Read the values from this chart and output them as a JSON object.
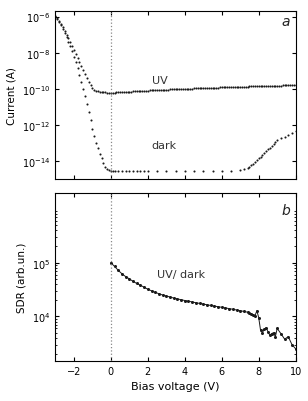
{
  "uv_x": [
    -3.0,
    -2.9,
    -2.8,
    -2.7,
    -2.6,
    -2.5,
    -2.4,
    -2.3,
    -2.2,
    -2.1,
    -2.0,
    -1.9,
    -1.8,
    -1.7,
    -1.6,
    -1.5,
    -1.4,
    -1.3,
    -1.2,
    -1.1,
    -1.0,
    -0.9,
    -0.8,
    -0.7,
    -0.6,
    -0.5,
    -0.4,
    -0.3,
    -0.2,
    -0.1,
    0.0,
    0.1,
    0.2,
    0.3,
    0.4,
    0.5,
    0.6,
    0.7,
    0.8,
    0.9,
    1.0,
    1.1,
    1.2,
    1.3,
    1.4,
    1.5,
    1.6,
    1.7,
    1.8,
    1.9,
    2.0,
    2.1,
    2.2,
    2.3,
    2.4,
    2.5,
    2.6,
    2.7,
    2.8,
    2.9,
    3.0,
    3.1,
    3.2,
    3.3,
    3.4,
    3.5,
    3.6,
    3.7,
    3.8,
    3.9,
    4.0,
    4.1,
    4.2,
    4.3,
    4.4,
    4.5,
    4.6,
    4.7,
    4.8,
    4.9,
    5.0,
    5.1,
    5.2,
    5.3,
    5.4,
    5.5,
    5.6,
    5.7,
    5.8,
    5.9,
    6.0,
    6.1,
    6.2,
    6.3,
    6.4,
    6.5,
    6.6,
    6.7,
    6.8,
    6.9,
    7.0,
    7.1,
    7.2,
    7.3,
    7.4,
    7.5,
    7.6,
    7.7,
    7.8,
    7.9,
    8.0,
    8.1,
    8.2,
    8.3,
    8.4,
    8.5,
    8.6,
    8.7,
    8.8,
    8.9,
    9.0,
    9.1,
    9.2,
    9.3,
    9.4,
    9.5,
    9.6,
    9.7,
    9.8,
    9.9,
    10.0
  ],
  "uv_y": [
    1.1e-06,
    8e-07,
    5.5e-07,
    3.8e-07,
    2.5e-07,
    1.6e-07,
    1e-07,
    6.5e-08,
    4e-08,
    2.4e-08,
    1.4e-08,
    8.5e-09,
    5e-09,
    3e-09,
    1.8e-09,
    1.1e-09,
    6.5e-10,
    4e-10,
    2.5e-10,
    1.6e-10,
    1.1e-10,
    9e-11,
    8e-11,
    7.5e-11,
    7e-11,
    6.8e-11,
    6.5e-11,
    6.3e-11,
    6.2e-11,
    6.1e-11,
    6e-11,
    6.1e-11,
    6.2e-11,
    6.3e-11,
    6.4e-11,
    6.5e-11,
    6.6e-11,
    6.7e-11,
    6.8e-11,
    6.9e-11,
    7e-11,
    7.1e-11,
    7.2e-11,
    7.3e-11,
    7.4e-11,
    7.5e-11,
    7.6e-11,
    7.7e-11,
    7.8e-11,
    7.9e-11,
    8e-11,
    8.1e-11,
    8.2e-11,
    8.3e-11,
    8.4e-11,
    8.5e-11,
    8.6e-11,
    8.7e-11,
    8.8e-11,
    8.9e-11,
    9e-11,
    9.1e-11,
    9.2e-11,
    9.3e-11,
    9.4e-11,
    9.5e-11,
    9.6e-11,
    9.7e-11,
    9.8e-11,
    9.9e-11,
    1e-10,
    1.01e-10,
    1.02e-10,
    1.03e-10,
    1.04e-10,
    1.05e-10,
    1.06e-10,
    1.07e-10,
    1.08e-10,
    1.09e-10,
    1.1e-10,
    1.11e-10,
    1.12e-10,
    1.13e-10,
    1.14e-10,
    1.15e-10,
    1.16e-10,
    1.17e-10,
    1.18e-10,
    1.19e-10,
    1.2e-10,
    1.21e-10,
    1.22e-10,
    1.23e-10,
    1.24e-10,
    1.25e-10,
    1.26e-10,
    1.27e-10,
    1.28e-10,
    1.29e-10,
    1.3e-10,
    1.31e-10,
    1.32e-10,
    1.33e-10,
    1.34e-10,
    1.35e-10,
    1.36e-10,
    1.37e-10,
    1.38e-10,
    1.39e-10,
    1.4e-10,
    1.41e-10,
    1.42e-10,
    1.43e-10,
    1.44e-10,
    1.45e-10,
    1.46e-10,
    1.47e-10,
    1.48e-10,
    1.49e-10,
    1.5e-10,
    1.51e-10,
    1.52e-10,
    1.53e-10,
    1.54e-10,
    1.55e-10,
    1.56e-10,
    1.57e-10,
    1.58e-10,
    1.59e-10,
    1.6e-10
  ],
  "dark_x": [
    -3.0,
    -2.9,
    -2.8,
    -2.7,
    -2.6,
    -2.5,
    -2.4,
    -2.3,
    -2.2,
    -2.1,
    -2.0,
    -1.9,
    -1.8,
    -1.7,
    -1.6,
    -1.5,
    -1.4,
    -1.3,
    -1.2,
    -1.1,
    -1.0,
    -0.9,
    -0.8,
    -0.7,
    -0.6,
    -0.5,
    -0.4,
    -0.3,
    -0.2,
    -0.1,
    0.0,
    0.1,
    0.2,
    0.4,
    0.6,
    0.8,
    1.0,
    1.2,
    1.4,
    1.6,
    1.8,
    2.0,
    2.5,
    3.0,
    3.5,
    4.0,
    4.5,
    5.0,
    5.5,
    6.0,
    6.5,
    7.0,
    7.2,
    7.4,
    7.5,
    7.6,
    7.7,
    7.8,
    7.9,
    8.0,
    8.1,
    8.2,
    8.3,
    8.4,
    8.5,
    8.6,
    8.7,
    8.8,
    8.9,
    9.0,
    9.2,
    9.4,
    9.6,
    9.8,
    10.0
  ],
  "dark_y": [
    1.1e-06,
    7.5e-07,
    5e-07,
    3.2e-07,
    2e-07,
    1.2e-07,
    7e-08,
    4e-08,
    2.2e-08,
    1.2e-08,
    6e-09,
    3e-09,
    1.4e-09,
    6e-10,
    2.5e-10,
    1e-10,
    4e-11,
    1.5e-11,
    5e-12,
    1.8e-12,
    6e-13,
    2.5e-13,
    1e-13,
    5e-14,
    2.5e-14,
    1.5e-14,
    8e-15,
    5e-15,
    3.5e-15,
    3.2e-15,
    3e-15,
    3e-15,
    3e-15,
    3e-15,
    3e-15,
    3e-15,
    3e-15,
    3e-15,
    3e-15,
    3e-15,
    3e-15,
    3e-15,
    3e-15,
    3e-15,
    3e-15,
    3e-15,
    3e-15,
    3e-15,
    3e-15,
    3e-15,
    3e-15,
    3.2e-15,
    3.5e-15,
    4e-15,
    5e-15,
    6e-15,
    7e-15,
    9e-15,
    1.2e-14,
    1.5e-14,
    1.8e-14,
    2.2e-14,
    2.8e-14,
    3.5e-14,
    4.5e-14,
    5.5e-14,
    7e-14,
    9e-14,
    1.1e-13,
    1.4e-13,
    1.8e-13,
    2.2e-13,
    2.8e-13,
    3.5e-13,
    4.5e-13
  ],
  "sdr_x": [
    0.0,
    0.2,
    0.4,
    0.6,
    0.8,
    1.0,
    1.2,
    1.4,
    1.6,
    1.8,
    2.0,
    2.2,
    2.4,
    2.6,
    2.8,
    3.0,
    3.2,
    3.4,
    3.6,
    3.8,
    4.0,
    4.2,
    4.4,
    4.6,
    4.8,
    5.0,
    5.2,
    5.4,
    5.6,
    5.8,
    6.0,
    6.2,
    6.4,
    6.6,
    6.8,
    7.0,
    7.2,
    7.4,
    7.5,
    7.6,
    7.7,
    7.8,
    7.9,
    8.0,
    8.1,
    8.2,
    8.3,
    8.4,
    8.5,
    8.6,
    8.7,
    8.8,
    8.9,
    9.0,
    9.2,
    9.4,
    9.6,
    9.8,
    10.0
  ],
  "sdr_y": [
    100000.0,
    85000.0,
    72000.0,
    62000.0,
    55000.0,
    50000.0,
    45000.0,
    41000.0,
    38000.0,
    35000.0,
    32000.0,
    30000.0,
    28000.0,
    26500.0,
    25000.0,
    24000.0,
    23000.0,
    22000.0,
    21200.0,
    20500.0,
    19800.0,
    19200.0,
    18600.0,
    18000.0,
    17500.0,
    17000.0,
    16500.0,
    16000.0,
    15600.0,
    15200.0,
    14800.0,
    14400.0,
    14000.0,
    13600.0,
    13200.0,
    12800.0,
    12400.0,
    12000.0,
    11600.0,
    11200.0,
    10800.0,
    10400.0,
    12800.0,
    9500.0,
    5500.0,
    5000.0,
    5800.0,
    6200.0,
    5200.0,
    4500.0,
    4800.0,
    5000.0,
    4200.0,
    6000.0,
    4800.0,
    3800.0,
    4200.0,
    3000.0,
    2500.0
  ],
  "bg_color": "#ffffff",
  "dot_color": "#1a1a1a",
  "panel_a_label": "a",
  "panel_b_label": "b",
  "uv_label": "UV",
  "dark_label": "dark",
  "sdr_label": "UV/ dark",
  "ylabel_a": "Current (A)",
  "ylabel_b": "SDR (arb.un.)",
  "xlabel": "Bias voltage (V)",
  "xlim": [
    -3,
    10
  ],
  "ylim_a": [
    1e-15,
    2e-06
  ],
  "ylim_b": [
    1500.0,
    2000000.0
  ],
  "xticks": [
    -2,
    0,
    2,
    4,
    6,
    8,
    10
  ],
  "yticks_a": [
    1e-14,
    1e-12,
    1e-10,
    1e-08,
    1e-06
  ],
  "yticks_b": [
    10000.0,
    100000.0
  ]
}
